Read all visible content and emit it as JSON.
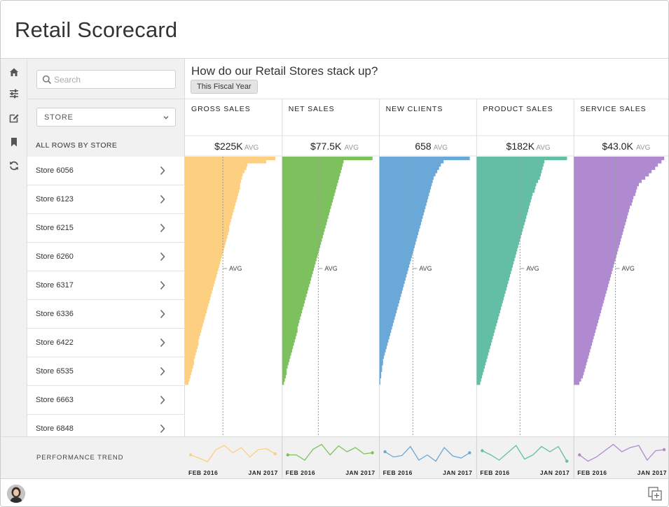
{
  "app": {
    "title": "Retail Scorecard"
  },
  "rail": {
    "icons": [
      "home-icon",
      "sliders-icon",
      "edit-icon",
      "bookmark-icon",
      "refresh-icon"
    ]
  },
  "sidebar": {
    "search_placeholder": "Search",
    "dimension_label": "STORE",
    "rows_header": "ALL ROWS BY STORE",
    "stores": [
      "Store 6056",
      "Store 6123",
      "Store 6215",
      "Store 6260",
      "Store 6317",
      "Store 6336",
      "Store 6422",
      "Store 6535",
      "Store 6663",
      "Store 6848"
    ]
  },
  "main": {
    "question": "How do our Retail Stores stack up?",
    "period": "This Fiscal Year",
    "trend_label": "PERFORMANCE TREND",
    "avg_suffix": "AVG",
    "avg_marker": "AVG"
  },
  "colors": {
    "gross": "#fcd080",
    "net": "#7dc15f",
    "clients": "#6aa8d8",
    "product": "#62bfa5",
    "service": "#b08ad0",
    "grid": "#e2e2e2",
    "dash": "#9a9a9a"
  },
  "chart_data": {
    "type": "bar",
    "orientation": "horizontal",
    "title": "How do our Retail Stores stack up?",
    "subtitle": "This Fiscal Year",
    "sort": "descending",
    "series": [
      {
        "name": "GROSS SALES",
        "color_key": "gross",
        "avg": 225,
        "avg_label": "$225K",
        "avg_position": "mid",
        "values": [
          100,
          90,
          69,
          68,
          66,
          64,
          63,
          62,
          61,
          61,
          60,
          59,
          58,
          57,
          56,
          55,
          54,
          53,
          52,
          51,
          50,
          49,
          49,
          48,
          47,
          46,
          45,
          44,
          43,
          42,
          41,
          40,
          39,
          38,
          37,
          36,
          35,
          34,
          33,
          32,
          31,
          30,
          29,
          28,
          27,
          26,
          25,
          24,
          23,
          22,
          21,
          20,
          19,
          18,
          17,
          16,
          15,
          15,
          14,
          13,
          12,
          11,
          10,
          10,
          9,
          8,
          7,
          6,
          5,
          4
        ]
      },
      {
        "name": "NET SALES",
        "color_key": "net",
        "avg": 77.5,
        "avg_label": "$77.5K",
        "avg_position": "mid",
        "values": [
          100,
          68,
          67,
          66,
          65,
          64,
          63,
          62,
          61,
          60,
          59,
          58,
          57,
          56,
          55,
          54,
          53,
          52,
          51,
          50,
          49,
          48,
          47,
          46,
          45,
          44,
          43,
          42,
          41,
          40,
          39,
          38,
          37,
          36,
          35,
          34,
          33,
          32,
          31,
          30,
          29,
          28,
          27,
          26,
          25,
          24,
          23,
          22,
          21,
          20,
          19,
          18,
          17,
          17,
          16,
          15,
          14,
          13,
          12,
          11,
          10,
          9,
          8,
          7,
          6,
          5,
          5,
          4,
          3,
          2
        ]
      },
      {
        "name": "NEW CLIENTS",
        "color_key": "clients",
        "avg": 658,
        "avg_label": "658",
        "avg_position": "mid",
        "values": [
          100,
          71,
          68,
          66,
          64,
          62,
          60,
          59,
          58,
          57,
          56,
          55,
          54,
          53,
          52,
          51,
          50,
          49,
          48,
          47,
          46,
          45,
          44,
          43,
          42,
          41,
          40,
          39,
          38,
          37,
          36,
          35,
          34,
          33,
          32,
          31,
          30,
          29,
          28,
          27,
          26,
          25,
          24,
          23,
          22,
          21,
          20,
          19,
          18,
          17,
          16,
          15,
          14,
          13,
          12,
          11,
          10,
          9,
          8,
          7,
          6,
          5,
          4,
          4,
          3,
          3,
          2,
          2,
          1,
          1
        ]
      },
      {
        "name": "PRODUCT SALES",
        "color_key": "product",
        "avg": 182,
        "avg_label": "$182K",
        "avg_position": "mid",
        "values": [
          100,
          75,
          74,
          73,
          72,
          71,
          70,
          68,
          66,
          65,
          64,
          62,
          61,
          60,
          59,
          58,
          57,
          56,
          55,
          54,
          53,
          52,
          51,
          50,
          49,
          48,
          47,
          46,
          45,
          44,
          43,
          42,
          41,
          40,
          39,
          38,
          37,
          36,
          35,
          34,
          33,
          32,
          31,
          30,
          29,
          28,
          27,
          26,
          25,
          24,
          23,
          22,
          21,
          20,
          19,
          18,
          17,
          16,
          15,
          14,
          13,
          12,
          11,
          10,
          9,
          8,
          7,
          6,
          5,
          4
        ]
      },
      {
        "name": "SERVICE SALES",
        "color_key": "service",
        "avg": 43.0,
        "avg_label": "$43.0K",
        "avg_position": "mid",
        "values": [
          100,
          97,
          93,
          90,
          86,
          83,
          79,
          75,
          72,
          70,
          69,
          68,
          66,
          65,
          64,
          62,
          61,
          60,
          59,
          58,
          57,
          56,
          55,
          54,
          53,
          52,
          51,
          50,
          49,
          48,
          47,
          46,
          45,
          44,
          43,
          42,
          41,
          40,
          39,
          38,
          37,
          36,
          35,
          34,
          33,
          32,
          31,
          30,
          29,
          28,
          27,
          26,
          25,
          24,
          23,
          22,
          21,
          20,
          19,
          18,
          17,
          16,
          15,
          14,
          13,
          12,
          11,
          10,
          8,
          6
        ]
      }
    ],
    "avg_position_fraction": [
      0.42,
      0.4,
      0.37,
      0.48,
      0.46
    ],
    "trend": {
      "start_label": "FEB 2016",
      "end_label": "JAN 2017",
      "series": [
        [
          0.45,
          0.3,
          0.12,
          0.7,
          0.9,
          0.55,
          0.8,
          0.35,
          0.7,
          0.75,
          0.5
        ],
        [
          0.45,
          0.45,
          0.2,
          0.72,
          0.95,
          0.45,
          0.88,
          0.6,
          0.8,
          0.5,
          0.55
        ],
        [
          0.6,
          0.35,
          0.42,
          0.85,
          0.2,
          0.45,
          0.15,
          0.8,
          0.4,
          0.3,
          0.55
        ],
        [
          0.65,
          0.45,
          0.2,
          0.55,
          0.9,
          0.25,
          0.45,
          0.85,
          0.6,
          0.85,
          0.15
        ],
        [
          0.45,
          0.15,
          0.35,
          0.65,
          0.95,
          0.6,
          0.8,
          0.9,
          0.2,
          0.65,
          0.7
        ]
      ]
    }
  }
}
